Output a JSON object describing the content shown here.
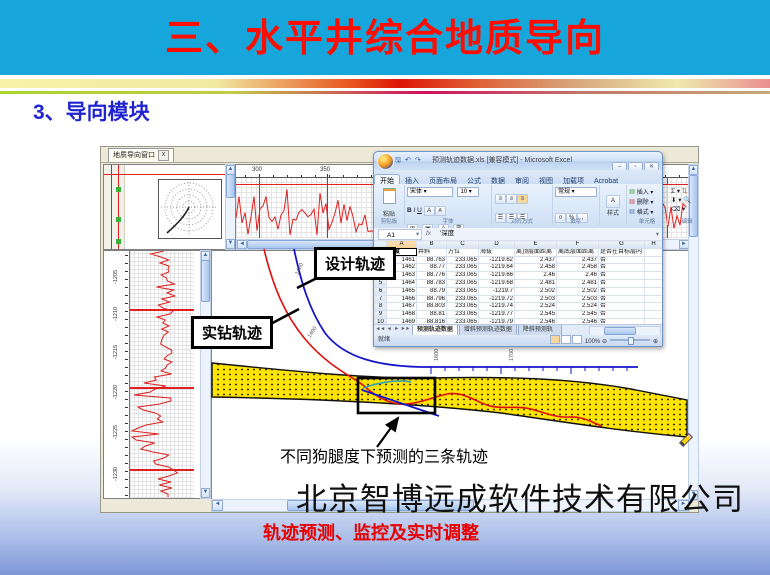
{
  "slide": {
    "title": "三、水平井综合地质导向",
    "subtitle": "3、导向模块",
    "company": "北京智博远成软件技术有限公司",
    "slogan": "轨迹预测、监控及实时调整"
  },
  "viewer": {
    "tab": "地质导向窗口",
    "tab_close": "x",
    "top_axis_ticks": [
      "300",
      "350",
      "400"
    ],
    "depth_ticks": [
      "-1205",
      "-1210",
      "-1215",
      "-1220",
      "-1225",
      "-1230"
    ],
    "md_labels": [
      "1480",
      "1490",
      "1600",
      "1700"
    ],
    "callout_design": "设计轨迹",
    "callout_actual": "实钻轨迹",
    "note_predicted": "不同狗腿度下预测的三条轨迹",
    "colors": {
      "design_line": "#1515cc",
      "actual_line": "#e01010",
      "predicted_alt_line": "#2fa3b5",
      "target_band": "#ffe400",
      "log_curve": "#e02020"
    }
  },
  "excel": {
    "title": "预测轨迹数据.xls [兼容模式] - Microsoft Excel",
    "ribbon_tabs": [
      "开始",
      "插入",
      "页面布局",
      "公式",
      "数据",
      "审阅",
      "视图",
      "加载项",
      "Acrobat"
    ],
    "active_tab": "开始",
    "font_name": "宋体",
    "font_size": "10",
    "number_format": "常规",
    "group_labels": [
      "剪贴板",
      "字体",
      "对齐方式",
      "数字",
      "单元格",
      "编辑"
    ],
    "buttons": {
      "paste": "粘贴",
      "styles": "样式",
      "insert": "插入",
      "delete": "删除",
      "format": "格式"
    },
    "name_box": "A1",
    "formula": "'深度",
    "columns": [
      "A",
      "B",
      "C",
      "D",
      "E",
      "F",
      "G",
      "H"
    ],
    "sheet": {
      "headers": [
        "深度",
        "井斜",
        "方位",
        "海拔",
        "离顶层面距离",
        "离底层面距离",
        "是否在目标层内"
      ],
      "rows": [
        [
          "1461",
          "88.763",
          "233.065",
          "-1219.62",
          "2.437",
          "2.437",
          "否"
        ],
        [
          "1462",
          "88.77",
          "233.065",
          "-1219.64",
          "2.458",
          "2.458",
          "否"
        ],
        [
          "1463",
          "88.776",
          "233.065",
          "-1219.66",
          "2.46",
          "2.46",
          "否"
        ],
        [
          "1464",
          "88.783",
          "233.065",
          "-1219.68",
          "2.481",
          "2.481",
          "否"
        ],
        [
          "1465",
          "88.79",
          "233.065",
          "-1219.7",
          "2.502",
          "2.502",
          "否"
        ],
        [
          "1466",
          "88.796",
          "233.065",
          "-1219.72",
          "2.503",
          "2.503",
          "否"
        ],
        [
          "1467",
          "88.803",
          "233.065",
          "-1219.74",
          "2.524",
          "2.524",
          "否"
        ],
        [
          "1468",
          "88.81",
          "233.065",
          "-1219.77",
          "2.545",
          "2.545",
          "否"
        ],
        [
          "1469",
          "88.816",
          "233.065",
          "-1219.79",
          "2.546",
          "2.546",
          "否"
        ],
        [
          "1470",
          "88.823",
          "233.065",
          "-1219.81",
          "2.566",
          "2.566",
          "否"
        ]
      ]
    },
    "sheet_tabs": [
      "预测轨迹数据",
      "增斜预测轨迹数据",
      "降斜预测轨迹数据"
    ],
    "status_ready": "就绪",
    "zoom_level": "100%"
  }
}
